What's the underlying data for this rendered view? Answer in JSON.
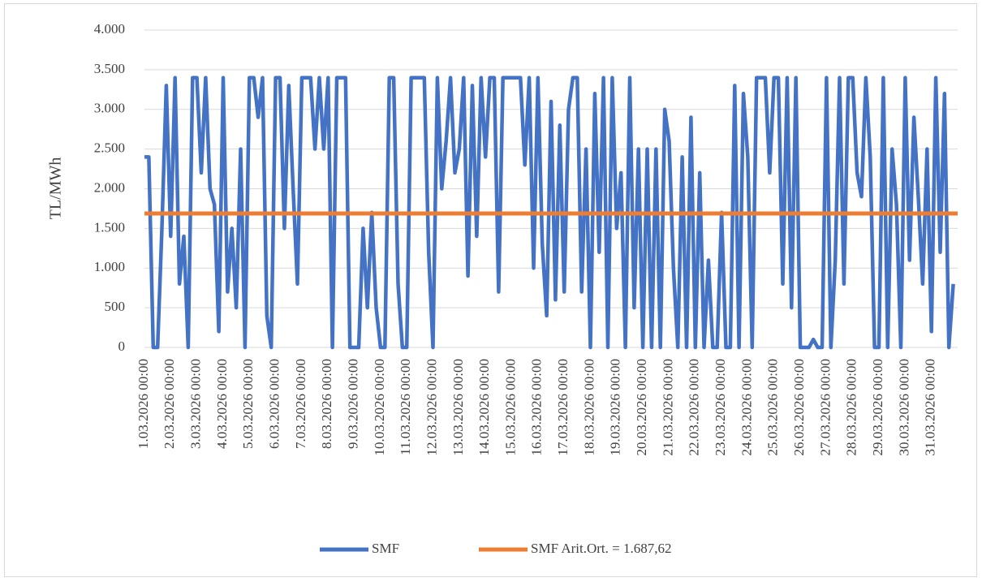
{
  "chart_data": {
    "type": "line",
    "y_label": "TL/MWh",
    "ylim": [
      0,
      4000
    ],
    "yticks": [
      0,
      500,
      {
        "value": 1000,
        "label": "1.000"
      },
      {
        "value": 1500,
        "label": "1.500"
      },
      {
        "value": 2000,
        "label": "2.000"
      },
      {
        "value": 2500,
        "label": "2.500"
      },
      {
        "value": 3000,
        "label": "3.000"
      },
      {
        "value": 3500,
        "label": "3.500"
      },
      {
        "value": 4000,
        "label": "4.000"
      }
    ],
    "grid": true,
    "legend": "bottom",
    "categories": [
      "1.03.2026 00:00",
      null,
      null,
      null,
      null,
      null,
      "2.03.2026 00:00",
      null,
      null,
      null,
      null,
      null,
      "3.03.2026 00:00",
      null,
      null,
      null,
      null,
      null,
      "4.03.2026 00:00",
      null,
      null,
      null,
      null,
      null,
      "5.03.2026 00:00",
      null,
      null,
      null,
      null,
      null,
      "6.03.2026 00:00",
      null,
      null,
      null,
      null,
      null,
      "7.03.2026 00:00",
      null,
      null,
      null,
      null,
      null,
      "8.03.2026 00:00",
      null,
      null,
      null,
      null,
      null,
      "9.03.2026 00:00",
      null,
      null,
      null,
      null,
      null,
      "10.03.2026 00:00",
      null,
      null,
      null,
      null,
      null,
      "11.03.2026 00:00",
      null,
      null,
      null,
      null,
      null,
      "12.03.2026 00:00",
      null,
      null,
      null,
      null,
      null,
      "13.03.2026 00:00",
      null,
      null,
      null,
      null,
      null,
      "14.03.2026 00:00",
      null,
      null,
      null,
      null,
      null,
      "15.03.2026 00:00",
      null,
      null,
      null,
      null,
      null,
      "16.03.2026 00:00",
      null,
      null,
      null,
      null,
      null,
      "17.03.2026 00:00",
      null,
      null,
      null,
      null,
      null,
      "18.03.2026 00:00",
      null,
      null,
      null,
      null,
      null,
      "19.03.2026 00:00",
      null,
      null,
      null,
      null,
      null,
      "20.03.2026 00:00",
      null,
      null,
      null,
      null,
      null,
      "21.03.2026 00:00",
      null,
      null,
      null,
      null,
      null,
      "22.03.2026 00:00",
      null,
      null,
      null,
      null,
      null,
      "23.03.2026 00:00",
      null,
      null,
      null,
      null,
      null,
      "24.03.2026 00:00",
      null,
      null,
      null,
      null,
      null,
      "25.03.2026 00:00",
      null,
      null,
      null,
      null,
      null,
      "26.03.2026 00:00",
      null,
      null,
      null,
      null,
      null,
      "27.03.2026 00:00",
      null,
      null,
      null,
      null,
      null,
      "28.03.2026 00:00",
      null,
      null,
      null,
      null,
      null,
      "29.03.2026 00:00",
      null,
      null,
      null,
      null,
      null,
      "30.03.2026 00:00",
      null,
      null,
      null,
      null,
      null,
      "31.03.2026 00:00",
      null,
      null,
      null,
      null,
      null
    ],
    "series": [
      {
        "name": "SMF",
        "color": "#4472c4",
        "values": [
          2400,
          2400,
          0,
          0,
          1500,
          3300,
          1400,
          3400,
          800,
          1400,
          0,
          3400,
          3400,
          2200,
          3400,
          2000,
          1800,
          200,
          3400,
          700,
          1500,
          500,
          2500,
          0,
          3400,
          3400,
          2900,
          3400,
          400,
          0,
          3400,
          3400,
          1500,
          3300,
          2000,
          800,
          3400,
          3400,
          3400,
          2500,
          3400,
          2500,
          3400,
          0,
          3400,
          3400,
          3400,
          0,
          0,
          0,
          1500,
          500,
          1700,
          500,
          0,
          0,
          3400,
          3400,
          800,
          0,
          0,
          3400,
          3400,
          3400,
          3400,
          1200,
          0,
          3400,
          2000,
          2600,
          3400,
          2200,
          2500,
          3400,
          900,
          3300,
          1400,
          3400,
          2400,
          3400,
          3400,
          700,
          3400,
          3400,
          3400,
          3400,
          3400,
          2300,
          3400,
          1000,
          3400,
          1300,
          400,
          3100,
          600,
          2800,
          700,
          3000,
          3400,
          3400,
          700,
          2500,
          0,
          3200,
          1200,
          3400,
          0,
          3400,
          1500,
          2200,
          0,
          3400,
          500,
          2500,
          0,
          2500,
          0,
          2500,
          0,
          3000,
          2600,
          1000,
          0,
          2400,
          0,
          2900,
          0,
          2200,
          0,
          1100,
          0,
          0,
          1700,
          0,
          0,
          3300,
          0,
          3200,
          2400,
          0,
          3400,
          3400,
          3400,
          2200,
          3400,
          3400,
          800,
          3400,
          500,
          3400,
          0,
          0,
          0,
          100,
          0,
          0,
          3400,
          0,
          1100,
          3400,
          800,
          3400,
          3400,
          2200,
          1900,
          3400,
          2400,
          0,
          0,
          3400,
          0,
          2500,
          1800,
          0,
          3400,
          1100,
          2900,
          1900,
          800,
          2500,
          200,
          3400,
          1200,
          3200,
          0,
          800
        ]
      }
    ],
    "reference_line": {
      "name": "SMF Arit.Ort. = 1.687,62",
      "value": 1687.62,
      "color": "#ed7d31"
    }
  }
}
